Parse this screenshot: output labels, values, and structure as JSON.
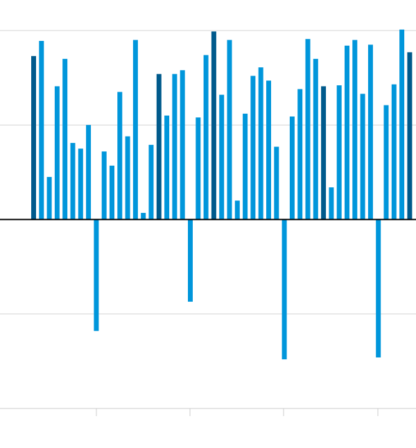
{
  "chart_data": {
    "type": "bar",
    "title": "",
    "xlabel": "",
    "ylabel": "",
    "ylim": [
      -200,
      200
    ],
    "y_gridlines": [
      -200,
      -100,
      0,
      100,
      200
    ],
    "grid": true,
    "legend": "none",
    "colors": {
      "default": "#0096db",
      "highlight": "#005a8c",
      "gridline": "#d4d4d4",
      "baseline": "#000000",
      "axis": "#cccccc"
    },
    "values": [
      173,
      189,
      45,
      141,
      170,
      81,
      75,
      100,
      -118,
      72,
      57,
      135,
      88,
      190,
      7,
      79,
      154,
      110,
      154,
      158,
      -87,
      108,
      174,
      199,
      132,
      190,
      20,
      112,
      152,
      161,
      147,
      77,
      -148,
      109,
      138,
      191,
      170,
      141,
      34,
      142,
      184,
      190,
      133,
      185,
      -146,
      121,
      143,
      201,
      177
    ],
    "highlight_indices": [
      0,
      16,
      23,
      37,
      48
    ]
  }
}
